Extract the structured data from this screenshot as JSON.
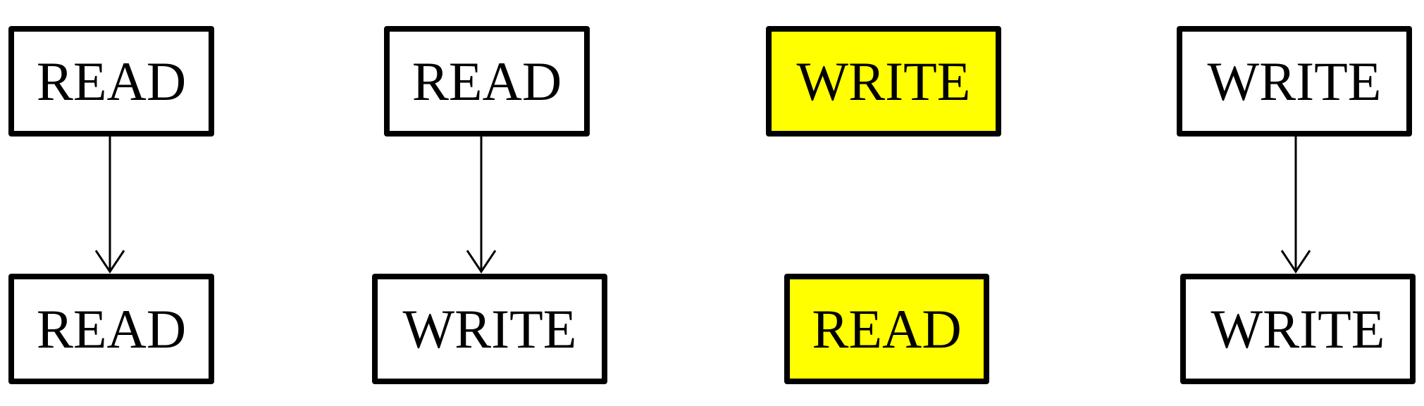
{
  "colors": {
    "border": "#000000",
    "highlight": "#ffff00",
    "background": "#ffffff"
  },
  "columns": [
    {
      "top": "READ",
      "bottom": "READ",
      "connected": true,
      "highlighted": false
    },
    {
      "top": "READ",
      "bottom": "WRITE",
      "connected": true,
      "highlighted": false
    },
    {
      "top": "WRITE",
      "bottom": "READ",
      "connected": false,
      "highlighted": true
    },
    {
      "top": "WRITE",
      "bottom": "WRITE",
      "connected": true,
      "highlighted": false
    }
  ]
}
